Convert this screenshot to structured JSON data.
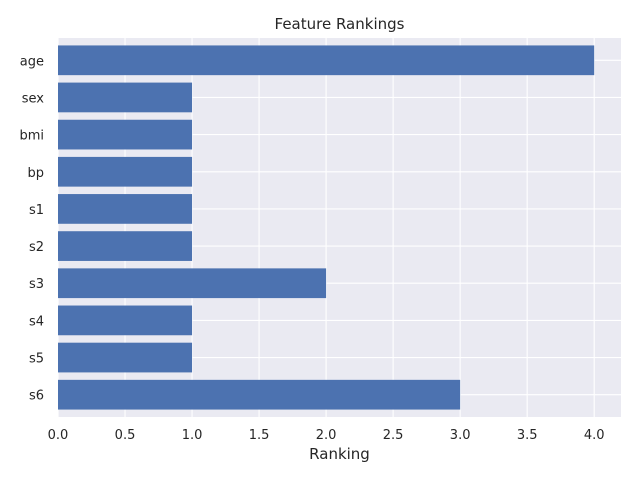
{
  "chart_data": {
    "type": "bar",
    "orientation": "horizontal",
    "title": "Feature Rankings",
    "xlabel": "Ranking",
    "ylabel": "",
    "categories": [
      "age",
      "sex",
      "bmi",
      "bp",
      "s1",
      "s2",
      "s3",
      "s4",
      "s5",
      "s6"
    ],
    "values": [
      4,
      1,
      1,
      1,
      1,
      1,
      2,
      1,
      1,
      3
    ],
    "xlim": [
      0,
      4.2
    ],
    "xticks": [
      0.0,
      0.5,
      1.0,
      1.5,
      2.0,
      2.5,
      3.0,
      3.5,
      4.0
    ],
    "xtick_labels": [
      "0.0",
      "0.5",
      "1.0",
      "1.5",
      "2.0",
      "2.5",
      "3.0",
      "3.5",
      "4.0"
    ],
    "grid": true,
    "bar_color": "#4c72b0",
    "background_color": "#eaeaf2",
    "grid_color": "#ffffff"
  }
}
